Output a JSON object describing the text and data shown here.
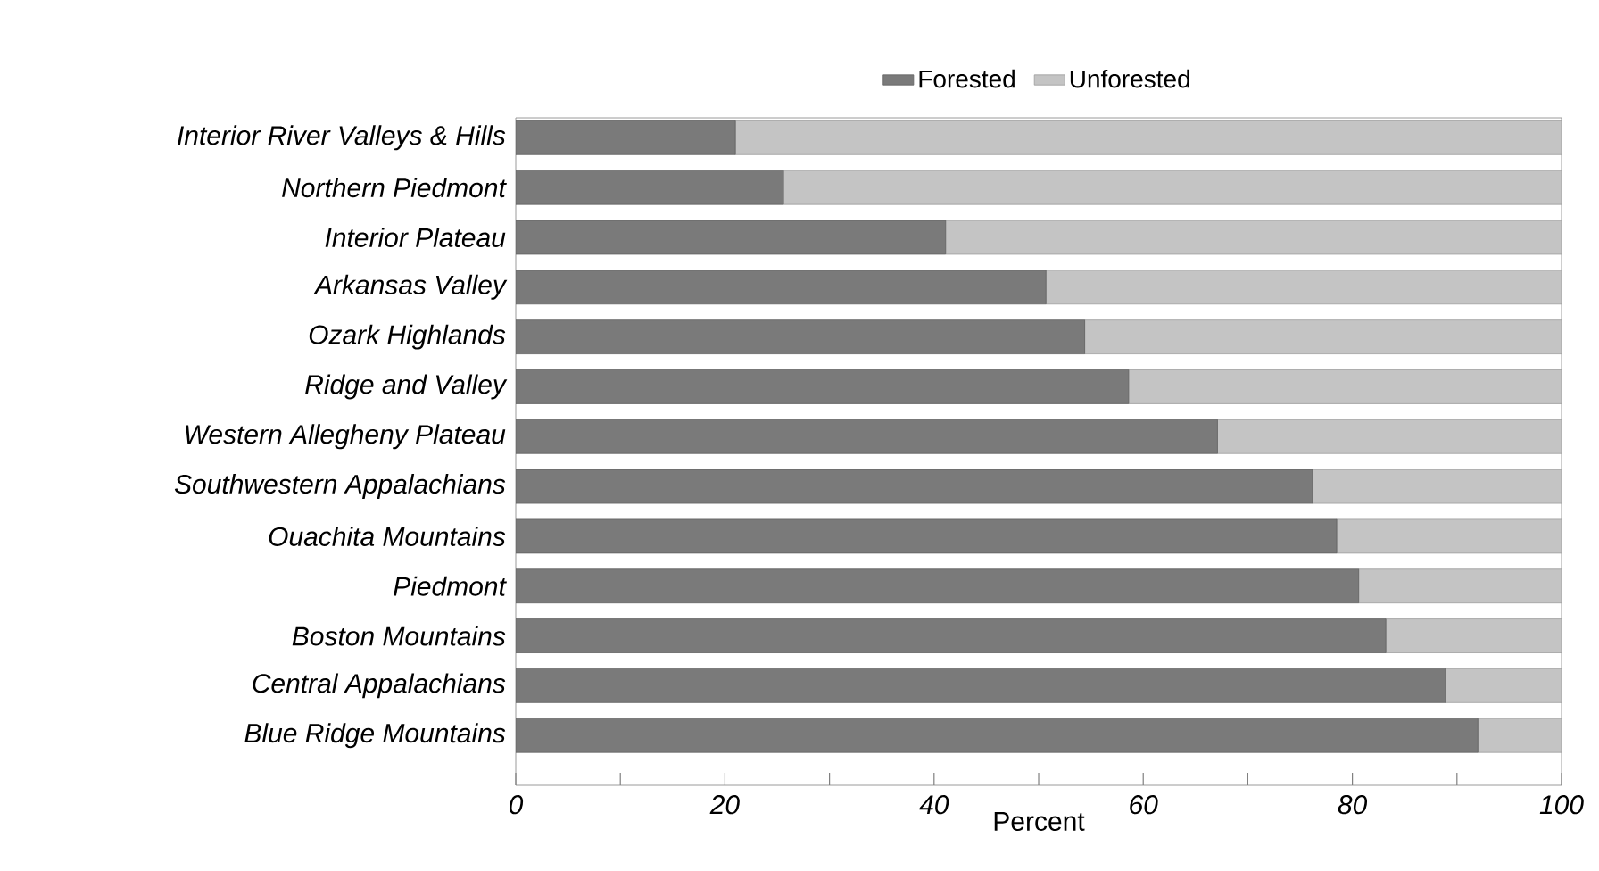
{
  "chart_data": {
    "type": "bar",
    "orientation": "horizontal",
    "stacked": true,
    "legend": "top",
    "xlabel": "Percent",
    "categories": [
      "Interior River Valleys & Hills",
      "Northern Piedmont",
      "Interior Plateau",
      "Arkansas Valley",
      "Ozark Highlands",
      "Ridge and Valley",
      "Western Allegheny Plateau",
      "Southwestern Appalachians",
      "Ouachita Mountains",
      "Piedmont",
      "Boston Mountains",
      "Central Appalachians",
      "Blue Ridge Mountains"
    ],
    "series": [
      {
        "name": "Forested",
        "color": "#7a7a7a",
        "values": [
          21.0,
          25.6,
          41.1,
          50.7,
          54.4,
          58.6,
          67.1,
          76.2,
          78.5,
          80.6,
          83.2,
          88.9,
          92.0
        ]
      },
      {
        "name": "Unforested",
        "color": "#c4c4c4",
        "values": [
          79.0,
          74.4,
          58.9,
          49.3,
          45.6,
          41.4,
          32.9,
          23.8,
          21.5,
          19.4,
          16.8,
          11.1,
          8.0
        ]
      }
    ],
    "xlim": [
      0,
      100
    ],
    "xticks": [
      0,
      {
        "value": 10,
        "label": null
      },
      20,
      {
        "value": 30,
        "label": null
      },
      40,
      {
        "value": 50,
        "label": null
      },
      60,
      {
        "value": 70,
        "label": null
      },
      80,
      {
        "value": 90,
        "label": null
      },
      100
    ]
  }
}
